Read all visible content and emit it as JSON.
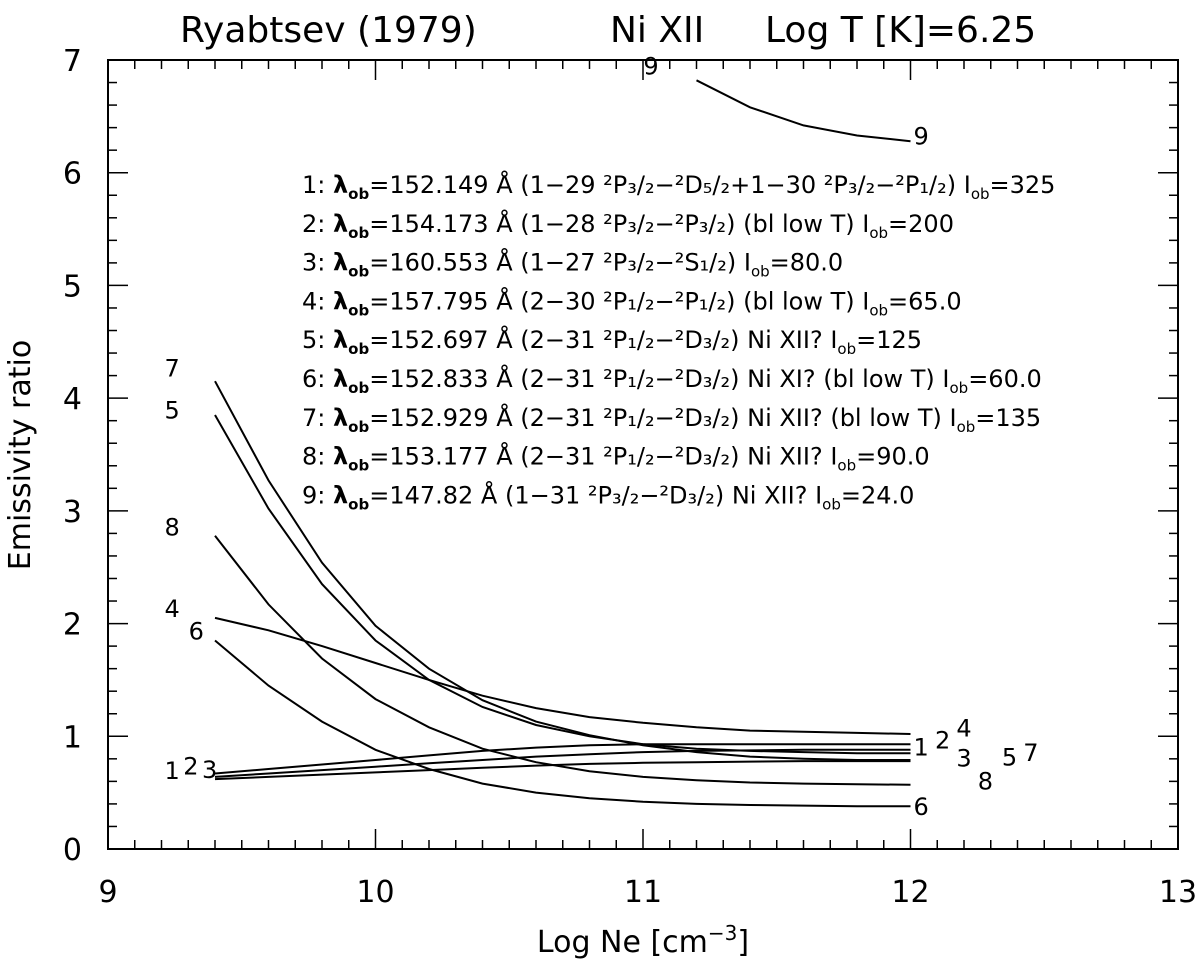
{
  "chart_data": {
    "type": "line",
    "title_parts": [
      "Ryabtsev (1979)",
      "Ni XII",
      "Log T [K]=6.25"
    ],
    "xlabel": "Log Ne [cm",
    "xlabel_sup": "−3",
    "xlabel_end": "]",
    "ylabel": "Emissivity ratio",
    "xlim": [
      9,
      13
    ],
    "ylim": [
      0,
      7
    ],
    "xticks": [
      "9",
      "10",
      "11",
      "12",
      "13"
    ],
    "yticks": [
      "0",
      "1",
      "2",
      "3",
      "4",
      "5",
      "6",
      "7"
    ],
    "x": [
      9.4,
      9.6,
      9.8,
      10.0,
      10.2,
      10.4,
      10.6,
      10.8,
      11.0,
      11.2,
      11.4,
      11.6,
      11.8,
      12.0
    ],
    "series": [
      {
        "name": "1",
        "values": [
          0.62,
          0.64,
          0.66,
          0.68,
          0.7,
          0.72,
          0.74,
          0.755,
          0.765,
          0.77,
          0.775,
          0.78,
          0.78,
          0.78
        ]
      },
      {
        "name": "2",
        "values": [
          0.64,
          0.67,
          0.7,
          0.73,
          0.76,
          0.79,
          0.82,
          0.84,
          0.86,
          0.87,
          0.875,
          0.88,
          0.88,
          0.88
        ]
      },
      {
        "name": "3",
        "values": [
          0.67,
          0.71,
          0.75,
          0.79,
          0.83,
          0.87,
          0.9,
          0.92,
          0.93,
          0.93,
          0.93,
          0.93,
          0.93,
          0.93
        ]
      },
      {
        "name": "4",
        "values": [
          2.05,
          1.94,
          1.8,
          1.65,
          1.5,
          1.36,
          1.25,
          1.17,
          1.12,
          1.08,
          1.05,
          1.04,
          1.03,
          1.02
        ]
      },
      {
        "name": "5",
        "values": [
          3.85,
          3.02,
          2.35,
          1.85,
          1.5,
          1.26,
          1.1,
          1.0,
          0.93,
          0.89,
          0.87,
          0.86,
          0.85,
          0.85
        ]
      },
      {
        "name": "6",
        "values": [
          1.85,
          1.45,
          1.13,
          0.88,
          0.71,
          0.58,
          0.5,
          0.45,
          0.42,
          0.4,
          0.39,
          0.385,
          0.38,
          0.38
        ]
      },
      {
        "name": "7",
        "values": [
          4.15,
          3.27,
          2.54,
          1.98,
          1.6,
          1.32,
          1.13,
          1.01,
          0.92,
          0.86,
          0.82,
          0.8,
          0.79,
          0.79
        ]
      },
      {
        "name": "8",
        "values": [
          2.78,
          2.17,
          1.69,
          1.33,
          1.08,
          0.89,
          0.77,
          0.69,
          0.64,
          0.61,
          0.59,
          0.58,
          0.575,
          0.57
        ]
      },
      {
        "name": "9",
        "x": [
          11.2,
          11.4,
          11.6,
          11.8,
          12.0
        ],
        "values": [
          6.82,
          6.58,
          6.42,
          6.33,
          6.28
        ]
      }
    ],
    "left_labels": [
      {
        "text": "1",
        "x": 9.24,
        "y": 0.62
      },
      {
        "text": "2",
        "x": 9.31,
        "y": 0.66
      },
      {
        "text": "3",
        "x": 9.38,
        "y": 0.63
      },
      {
        "text": "4",
        "x": 9.24,
        "y": 2.06
      },
      {
        "text": "5",
        "x": 9.24,
        "y": 3.82
      },
      {
        "text": "6",
        "x": 9.33,
        "y": 1.86
      },
      {
        "text": "7",
        "x": 9.24,
        "y": 4.19
      },
      {
        "text": "8",
        "x": 9.24,
        "y": 2.78
      },
      {
        "text": "9",
        "x": 11.03,
        "y": 6.87
      }
    ],
    "right_labels": [
      {
        "text": "1",
        "x": 12.04,
        "y": 0.83
      },
      {
        "text": "2",
        "x": 12.12,
        "y": 0.89
      },
      {
        "text": "3",
        "x": 12.2,
        "y": 0.73
      },
      {
        "text": "4",
        "x": 12.2,
        "y": 1.0
      },
      {
        "text": "5",
        "x": 12.37,
        "y": 0.74
      },
      {
        "text": "6",
        "x": 12.04,
        "y": 0.3
      },
      {
        "text": "7",
        "x": 12.45,
        "y": 0.78
      },
      {
        "text": "8",
        "x": 12.28,
        "y": 0.53
      },
      {
        "text": "9",
        "x": 12.04,
        "y": 6.25
      }
    ],
    "legend": [
      {
        "id": "1",
        "lambda": "152.149",
        "unit": "Å",
        "transition": "(1−29 ²P₃/₂−²D₅/₂+1−30 ²P₃/₂−²P₁/₂)",
        "note": "",
        "iob": "325"
      },
      {
        "id": "2",
        "lambda": "154.173",
        "unit": "Å",
        "transition": "(1−28 ²P₃/₂−²P₃/₂)",
        "note": "(bl low T)",
        "iob": "200"
      },
      {
        "id": "3",
        "lambda": "160.553",
        "unit": "Å",
        "transition": "(1−27 ²P₃/₂−²S₁/₂)",
        "note": "",
        "iob": "80.0"
      },
      {
        "id": "4",
        "lambda": "157.795",
        "unit": "Å",
        "transition": "(2−30 ²P₁/₂−²P₁/₂)",
        "note": "(bl low T)",
        "iob": "65.0"
      },
      {
        "id": "5",
        "lambda": "152.697",
        "unit": "Å",
        "transition": "(2−31 ²P₁/₂−²D₃/₂)",
        "note": "Ni XII?",
        "iob": "125"
      },
      {
        "id": "6",
        "lambda": "152.833",
        "unit": "Å",
        "transition": "(2−31 ²P₁/₂−²D₃/₂)",
        "note": "Ni XI? (bl low T)",
        "iob": "60.0"
      },
      {
        "id": "7",
        "lambda": "152.929",
        "unit": "Å",
        "transition": "(2−31 ²P₁/₂−²D₃/₂)",
        "note": "Ni XII? (bl low T)",
        "iob": "135"
      },
      {
        "id": "8",
        "lambda": "153.177",
        "unit": "Å",
        "transition": "(2−31 ²P₁/₂−²D₃/₂)",
        "note": "Ni XII?",
        "iob": "90.0"
      },
      {
        "id": "9",
        "lambda": "147.82",
        "unit": "Å",
        "transition": "(1−31 ²P₃/₂−²D₃/₂)",
        "note": "Ni XII?",
        "iob": "24.0"
      }
    ]
  }
}
